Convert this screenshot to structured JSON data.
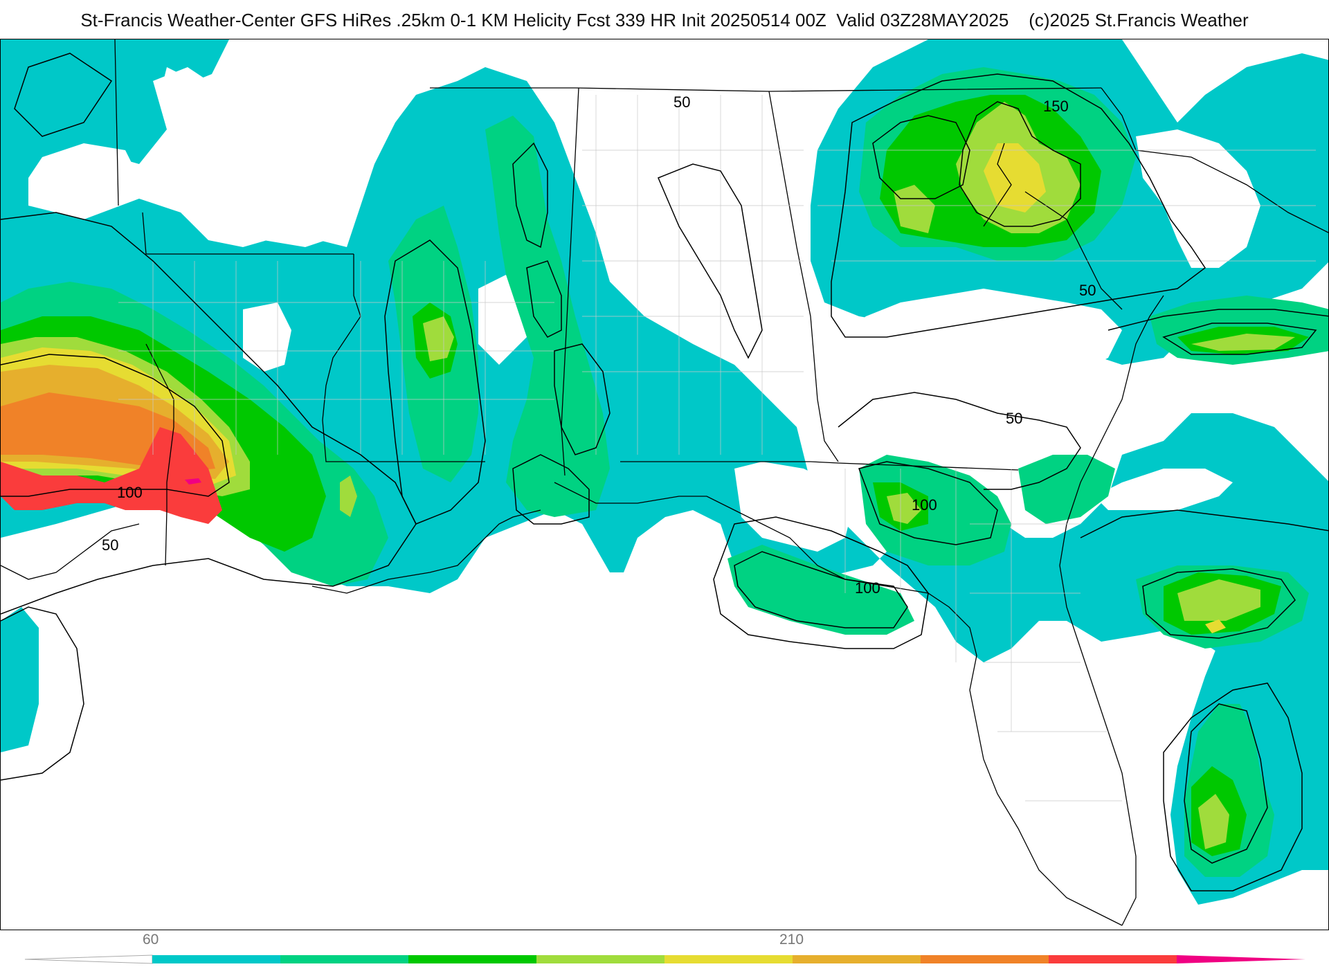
{
  "title": "St-Francis Weather-Center GFS HiRes .25km 0-1 KM Helicity Fcst 339 HR Init 20250514 00Z  Valid 03Z28MAY2025    (c)2025 St.Francis Weather",
  "contour_labels": [
    "50",
    "150",
    "50",
    "50",
    "100",
    "100",
    "100",
    "50"
  ],
  "colorbar": {
    "tick_labels": [
      "60",
      "210"
    ],
    "colors": [
      "#00c8c8",
      "#00d282",
      "#00c800",
      "#a0dc3c",
      "#e6dc32",
      "#e6af2d",
      "#f08228",
      "#fa3c3c",
      "#f00082"
    ]
  },
  "colors": {
    "cyan": "#00c8c8",
    "teal": "#00d282",
    "green": "#00c800",
    "lime": "#a0dc3c",
    "yellow": "#e6dc32",
    "gold": "#e6af2d",
    "orange": "#f08228",
    "red": "#fa3c3c",
    "magenta": "#f00082"
  }
}
